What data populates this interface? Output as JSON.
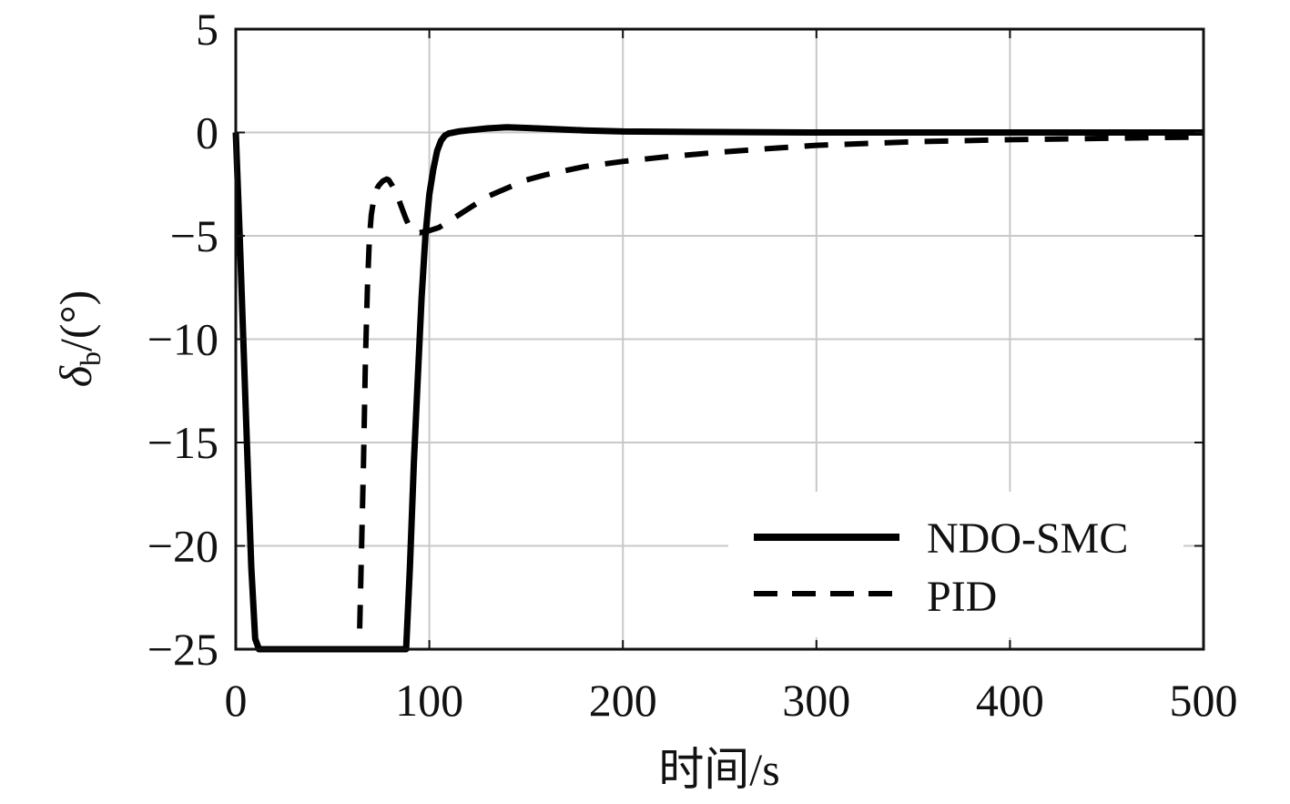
{
  "chart_data": {
    "type": "line",
    "xlabel": "时间/s",
    "ylabel_symbol": "δ",
    "ylabel_subscript": "b",
    "ylabel_unit": "/(°)",
    "xlim": [
      0,
      500
    ],
    "ylim": [
      -25,
      5
    ],
    "xticks": [
      0,
      100,
      200,
      300,
      400,
      500
    ],
    "xtick_labels": [
      "0",
      "100",
      "200",
      "300",
      "400",
      "500"
    ],
    "yticks": [
      5,
      0,
      -5,
      -10,
      -15,
      -20,
      -25
    ],
    "ytick_labels": [
      "5",
      "0",
      "−5",
      "−10",
      "−15",
      "−20",
      "−25"
    ],
    "grid": true,
    "legend_position": "lower-right",
    "series": [
      {
        "name": "NDO-SMC",
        "style": "solid",
        "color": "#000000",
        "x": [
          0,
          2,
          5,
          8,
          10,
          12,
          20,
          40,
          60,
          80,
          86,
          88,
          90,
          92,
          94,
          96,
          98,
          100,
          102,
          104,
          106,
          108,
          110,
          115,
          120,
          130,
          140,
          150,
          160,
          180,
          200,
          250,
          300,
          400,
          500
        ],
        "y": [
          0,
          -5,
          -13,
          -21,
          -24.5,
          -25,
          -25,
          -25,
          -25,
          -25,
          -25,
          -25,
          -21,
          -16,
          -12,
          -8,
          -5,
          -3,
          -1.8,
          -0.9,
          -0.4,
          -0.15,
          -0.05,
          0.05,
          0.1,
          0.2,
          0.25,
          0.22,
          0.18,
          0.1,
          0.05,
          0.02,
          0,
          0,
          0
        ]
      },
      {
        "name": "PID",
        "style": "dashed",
        "color": "#000000",
        "x": [
          64,
          66,
          67,
          68,
          69,
          70,
          71,
          72,
          73,
          74,
          75,
          76,
          77,
          78,
          79,
          80,
          81,
          82,
          84,
          86,
          88,
          90,
          92,
          95,
          100,
          105,
          110,
          120,
          130,
          140,
          150,
          160,
          170,
          180,
          200,
          220,
          250,
          280,
          300,
          350,
          400,
          450,
          500
        ],
        "y": [
          -24,
          -16,
          -11,
          -7.5,
          -5.2,
          -4,
          -3.4,
          -3.0,
          -2.7,
          -2.55,
          -2.45,
          -2.35,
          -2.3,
          -2.25,
          -2.3,
          -2.45,
          -2.6,
          -2.8,
          -3.2,
          -3.7,
          -4.2,
          -4.6,
          -4.8,
          -4.85,
          -4.75,
          -4.6,
          -4.3,
          -3.7,
          -3.1,
          -2.7,
          -2.3,
          -2.05,
          -1.85,
          -1.65,
          -1.4,
          -1.2,
          -0.95,
          -0.75,
          -0.62,
          -0.45,
          -0.35,
          -0.28,
          -0.22
        ]
      }
    ]
  }
}
